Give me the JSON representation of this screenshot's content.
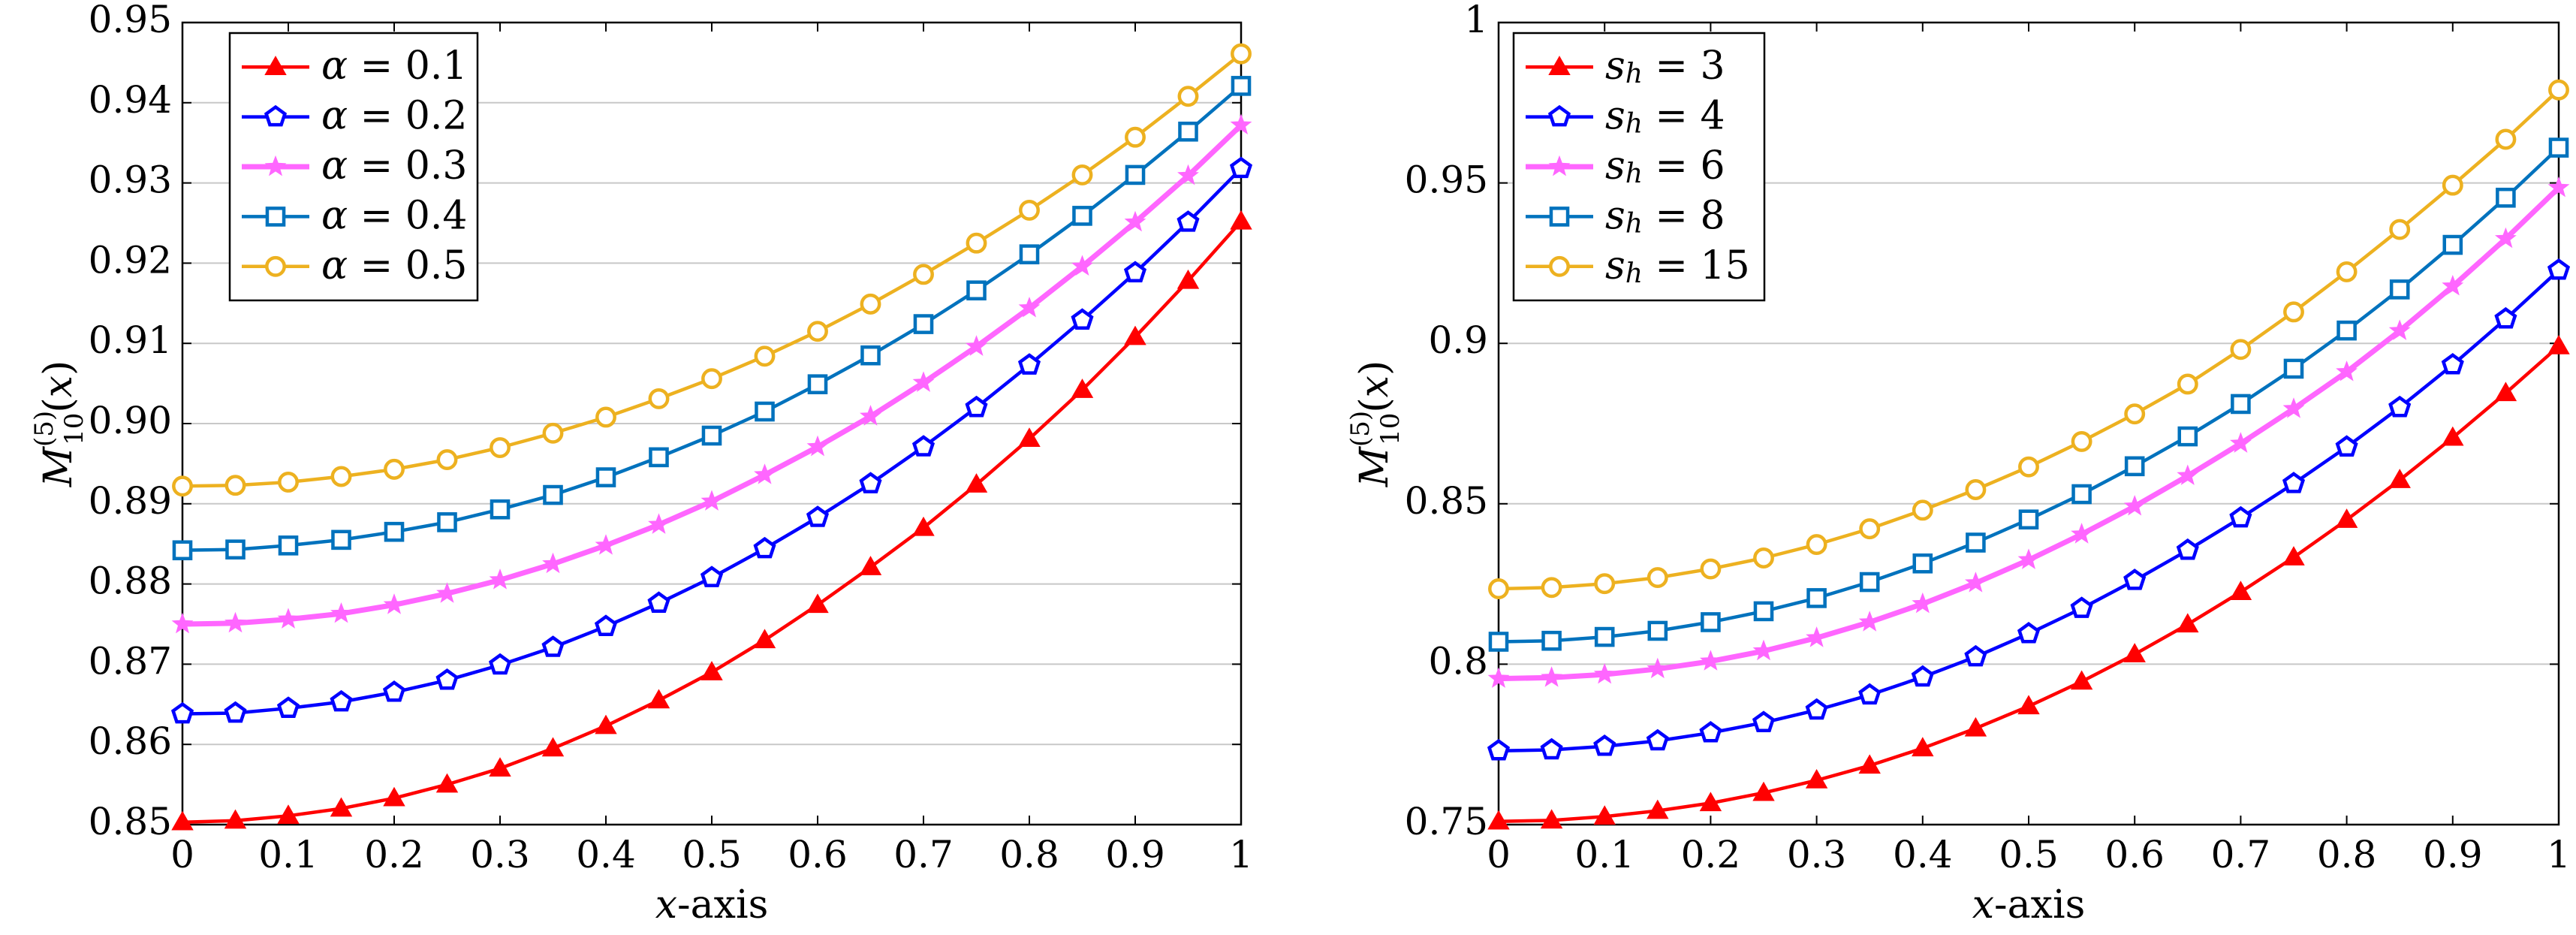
{
  "colors": {
    "red": "#ff0000",
    "blue": "#0000ff",
    "magenta": "#ff66ff",
    "teal": "#0072bd",
    "gold": "#edb120",
    "grid": "#c8c8c8"
  },
  "chart_data": [
    {
      "type": "line",
      "xlabel": "x-axis",
      "ylabel": "M_{10}^{(5)}(x)",
      "xlim": [
        0,
        1
      ],
      "ylim": [
        0.85,
        0.95
      ],
      "xticks": [
        "0",
        "0.1",
        "0.2",
        "0.3",
        "0.4",
        "0.5",
        "0.6",
        "0.7",
        "0.8",
        "0.9",
        "1"
      ],
      "yticks": [
        "0.85",
        "0.86",
        "0.87",
        "0.88",
        "0.89",
        "0.90",
        "0.91",
        "0.92",
        "0.93",
        "0.94",
        "0.95"
      ],
      "grid": "horizontal",
      "legend_position": "top-left",
      "x": [
        0,
        0.05,
        0.1,
        0.15,
        0.2,
        0.25,
        0.3,
        0.35,
        0.4,
        0.45,
        0.5,
        0.55,
        0.6,
        0.65,
        0.7,
        0.75,
        0.8,
        0.85,
        0.9,
        0.95,
        1
      ],
      "series": [
        {
          "name": "α = 0.1",
          "symbol": "α",
          "value": "0.1",
          "color": "#ff0000",
          "marker": "triangle",
          "values": [
            0.8503,
            0.8505,
            0.8511,
            0.852,
            0.8533,
            0.855,
            0.857,
            0.8595,
            0.8623,
            0.8655,
            0.869,
            0.873,
            0.8774,
            0.8821,
            0.887,
            0.8924,
            0.8981,
            0.9042,
            0.9108,
            0.9178,
            0.9252
          ]
        },
        {
          "name": "α = 0.2",
          "symbol": "α",
          "value": "0.2",
          "color": "#0000ff",
          "marker": "pentagon",
          "values": [
            0.8638,
            0.8639,
            0.8645,
            0.8653,
            0.8665,
            0.868,
            0.8699,
            0.8721,
            0.8747,
            0.8776,
            0.8808,
            0.8844,
            0.8883,
            0.8925,
            0.8971,
            0.902,
            0.9073,
            0.9129,
            0.9188,
            0.9251,
            0.9318
          ]
        },
        {
          "name": "α = 0.3",
          "symbol": "α",
          "value": "0.3",
          "color": "#ff66ff",
          "marker": "star",
          "values": [
            0.875,
            0.8751,
            0.8756,
            0.8763,
            0.8774,
            0.8788,
            0.8805,
            0.8825,
            0.8848,
            0.8874,
            0.8903,
            0.8936,
            0.8971,
            0.9009,
            0.9051,
            0.9096,
            0.9144,
            0.9196,
            0.9251,
            0.9309,
            0.9372
          ]
        },
        {
          "name": "α = 0.4",
          "symbol": "α",
          "value": "0.4",
          "color": "#0072bd",
          "marker": "square",
          "values": [
            0.8842,
            0.8843,
            0.8848,
            0.8855,
            0.8865,
            0.8877,
            0.8893,
            0.8911,
            0.8933,
            0.8958,
            0.8985,
            0.9015,
            0.9049,
            0.9085,
            0.9124,
            0.9166,
            0.9211,
            0.9259,
            0.931,
            0.9364,
            0.9421
          ]
        },
        {
          "name": "α = 0.5",
          "symbol": "α",
          "value": "0.5",
          "color": "#edb120",
          "marker": "circle",
          "values": [
            0.8922,
            0.8923,
            0.8927,
            0.8934,
            0.8943,
            0.8955,
            0.897,
            0.8988,
            0.9008,
            0.9031,
            0.9056,
            0.9084,
            0.9115,
            0.9149,
            0.9186,
            0.9225,
            0.9266,
            0.931,
            0.9357,
            0.9408,
            0.9461
          ]
        }
      ]
    },
    {
      "type": "line",
      "xlabel": "x-axis",
      "ylabel": "M_{10}^{(5)}(x)",
      "xlim": [
        0,
        1
      ],
      "ylim": [
        0.75,
        1
      ],
      "xticks": [
        "0",
        "0.1",
        "0.2",
        "0.3",
        "0.4",
        "0.5",
        "0.6",
        "0.7",
        "0.8",
        "0.9",
        "1"
      ],
      "yticks": [
        "0.75",
        "0.8",
        "0.85",
        "0.9",
        "0.95",
        "1"
      ],
      "grid": "horizontal",
      "legend_position": "top-left",
      "x": [
        0,
        0.05,
        0.1,
        0.15,
        0.2,
        0.25,
        0.3,
        0.35,
        0.4,
        0.45,
        0.5,
        0.55,
        0.6,
        0.65,
        0.7,
        0.75,
        0.8,
        0.85,
        0.9,
        0.95,
        1
      ],
      "series": [
        {
          "name": "s_h = 3",
          "symbol": "s",
          "subscript": "h",
          "value": "3",
          "color": "#ff0000",
          "marker": "triangle",
          "values": [
            0.751,
            0.7513,
            0.7525,
            0.7543,
            0.7567,
            0.7599,
            0.7638,
            0.7684,
            0.7738,
            0.78,
            0.7869,
            0.7946,
            0.8031,
            0.8124,
            0.8225,
            0.8333,
            0.845,
            0.8574,
            0.8706,
            0.8845,
            0.8991
          ]
        },
        {
          "name": "s_h = 4",
          "symbol": "s",
          "subscript": "h",
          "value": "4",
          "color": "#0000ff",
          "marker": "pentagon",
          "values": [
            0.773,
            0.7733,
            0.7744,
            0.7761,
            0.7786,
            0.7818,
            0.7857,
            0.7904,
            0.796,
            0.8023,
            0.8095,
            0.8174,
            0.8261,
            0.8355,
            0.8456,
            0.8563,
            0.8677,
            0.88,
            0.8933,
            0.9076,
            0.9228
          ]
        },
        {
          "name": "s_h = 6",
          "symbol": "s",
          "subscript": "h",
          "value": "6",
          "color": "#ff66ff",
          "marker": "star",
          "values": [
            0.7955,
            0.7958,
            0.7968,
            0.7985,
            0.8009,
            0.8041,
            0.8082,
            0.8131,
            0.8188,
            0.8253,
            0.8325,
            0.8405,
            0.8492,
            0.8587,
            0.8688,
            0.8796,
            0.8911,
            0.9039,
            0.9178,
            0.9326,
            0.9485
          ]
        },
        {
          "name": "s_h = 8",
          "symbol": "s",
          "subscript": "h",
          "value": "8",
          "color": "#0072bd",
          "marker": "square",
          "values": [
            0.807,
            0.8073,
            0.8085,
            0.8104,
            0.8131,
            0.8165,
            0.8206,
            0.8256,
            0.8314,
            0.8379,
            0.8451,
            0.853,
            0.8617,
            0.871,
            0.8811,
            0.8921,
            0.904,
            0.9168,
            0.9307,
            0.9454,
            0.961
          ]
        },
        {
          "name": "s_h = 15",
          "symbol": "s",
          "subscript": "h",
          "value": "15",
          "color": "#edb120",
          "marker": "circle",
          "values": [
            0.8235,
            0.8239,
            0.8251,
            0.827,
            0.8297,
            0.8331,
            0.8373,
            0.8422,
            0.848,
            0.8544,
            0.8615,
            0.8694,
            0.878,
            0.8873,
            0.8981,
            0.9098,
            0.9223,
            0.9355,
            0.9493,
            0.9636,
            0.979
          ]
        }
      ]
    }
  ]
}
